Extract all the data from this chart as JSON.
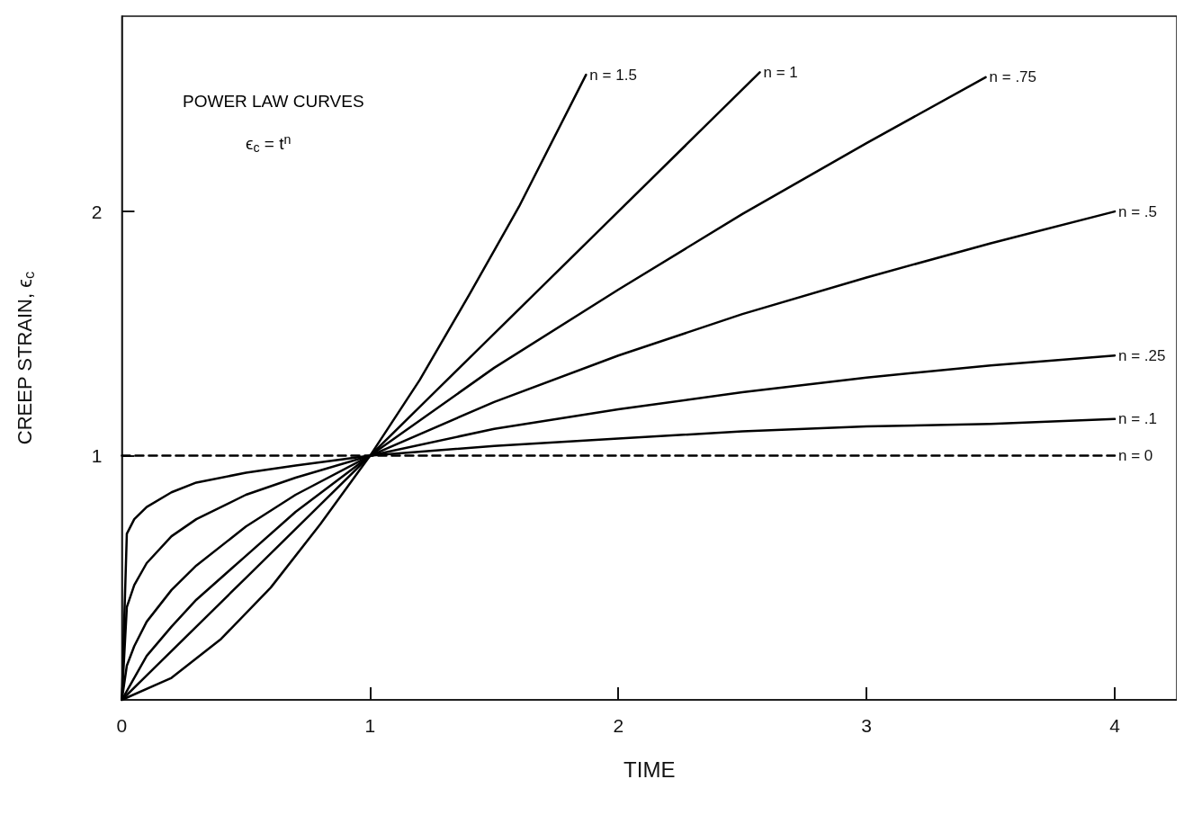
{
  "chart_data": {
    "type": "line",
    "xlabel": "TIME",
    "ylabel": "CREEP STRAIN, ϵ$_{c}$",
    "xlim": [
      0,
      4.25
    ],
    "xticks": [
      0,
      1,
      2,
      3,
      4
    ],
    "ylim": [
      0,
      2.8
    ],
    "yticks": [
      1,
      2
    ],
    "grid": false,
    "legend": false,
    "marker": "none",
    "annotations": [
      "POWER LAW CURVES",
      "ϵ$_{c}$ = t$^{n}$"
    ],
    "series": [
      {
        "name": "n = 1.5",
        "color": "#000000",
        "line_style": "solid",
        "x": [
          0,
          0.2,
          0.4,
          0.6,
          0.8,
          1,
          1.2,
          1.4,
          1.6,
          1.87
        ],
        "values": [
          0,
          0.09,
          0.25,
          0.46,
          0.72,
          1,
          1.31,
          1.66,
          2.02,
          2.56
        ]
      },
      {
        "name": "n = 1",
        "color": "#000000",
        "line_style": "solid",
        "x": [
          0,
          0.5,
          1,
          1.5,
          2,
          2.57
        ],
        "values": [
          0,
          0.5,
          1,
          1.5,
          2,
          2.57
        ]
      },
      {
        "name": "n = .75",
        "color": "#000000",
        "line_style": "solid",
        "x": [
          0,
          0.1,
          0.2,
          0.3,
          0.5,
          0.7,
          1,
          1.5,
          2,
          2.5,
          3,
          3.48
        ],
        "values": [
          0,
          0.18,
          0.3,
          0.41,
          0.59,
          0.77,
          1,
          1.36,
          1.68,
          1.99,
          2.28,
          2.55
        ]
      },
      {
        "name": "n = .5",
        "color": "#000000",
        "line_style": "solid",
        "x": [
          0,
          0.02,
          0.05,
          0.1,
          0.2,
          0.3,
          0.5,
          0.7,
          1,
          1.5,
          2,
          2.5,
          3,
          3.5,
          4
        ],
        "values": [
          0,
          0.14,
          0.22,
          0.32,
          0.45,
          0.55,
          0.71,
          0.84,
          1,
          1.22,
          1.41,
          1.58,
          1.73,
          1.87,
          2
        ]
      },
      {
        "name": "n = .25",
        "color": "#000000",
        "line_style": "solid",
        "x": [
          0,
          0.02,
          0.05,
          0.1,
          0.2,
          0.3,
          0.5,
          0.7,
          1,
          1.5,
          2,
          2.5,
          3,
          3.5,
          4
        ],
        "values": [
          0,
          0.38,
          0.47,
          0.56,
          0.67,
          0.74,
          0.84,
          0.91,
          1,
          1.11,
          1.19,
          1.26,
          1.32,
          1.37,
          1.41
        ]
      },
      {
        "name": "n = .1",
        "color": "#000000",
        "line_style": "solid",
        "x": [
          0,
          0.02,
          0.05,
          0.1,
          0.2,
          0.3,
          0.5,
          0.7,
          1,
          1.5,
          2,
          2.5,
          3,
          3.5,
          4
        ],
        "values": [
          0,
          0.68,
          0.74,
          0.79,
          0.85,
          0.89,
          0.93,
          0.96,
          1,
          1.04,
          1.07,
          1.1,
          1.12,
          1.13,
          1.15
        ]
      },
      {
        "name": "n = 0",
        "color": "#000000",
        "line_style": "dashed",
        "x": [
          0,
          4
        ],
        "values": [
          1,
          1
        ]
      }
    ]
  }
}
